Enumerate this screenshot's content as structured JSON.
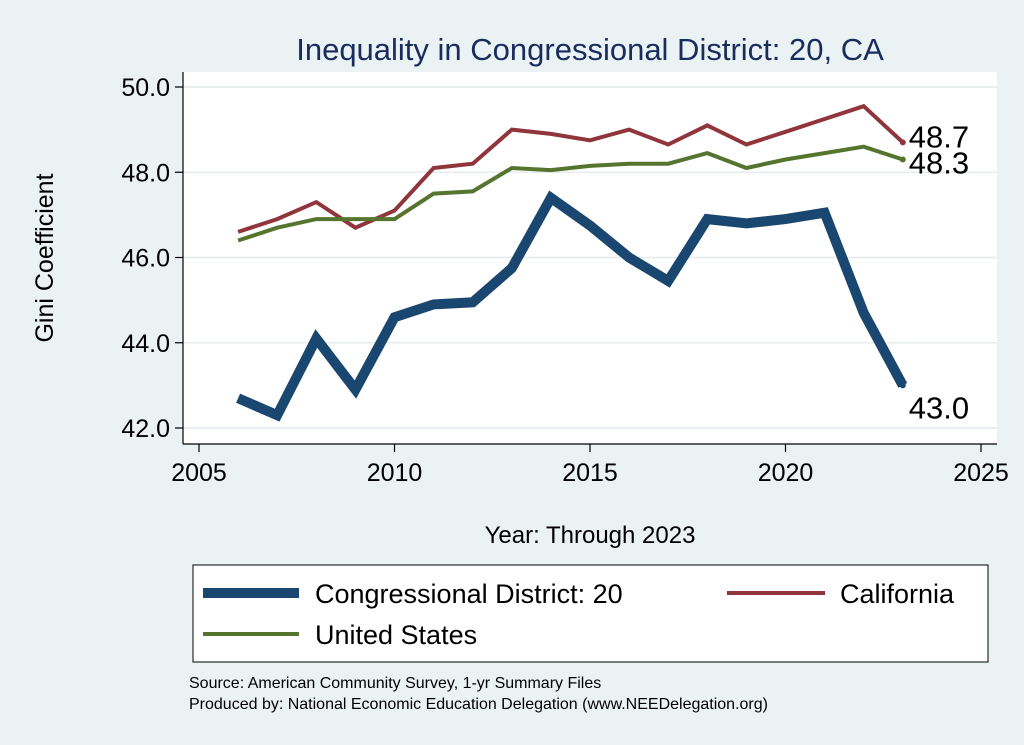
{
  "chart_data": {
    "type": "line",
    "title": "Inequality in Congressional District:  20, CA",
    "xlabel": "Year: Through 2023",
    "ylabel": "Gini Coefficient",
    "xlim": [
      2005,
      2025
    ],
    "ylim": [
      42.0,
      50.0
    ],
    "x_ticks": [
      2005,
      2010,
      2015,
      2020,
      2025
    ],
    "y_ticks": [
      42.0,
      44.0,
      46.0,
      48.0,
      50.0
    ],
    "grid": "horizontal",
    "legend_position": "bottom",
    "x": [
      2006,
      2007,
      2008,
      2009,
      2010,
      2011,
      2012,
      2013,
      2014,
      2015,
      2016,
      2017,
      2018,
      2019,
      2020,
      2021,
      2022,
      2023
    ],
    "series": [
      {
        "name": "Congressional District:  20",
        "color": "#1a476f",
        "values": [
          42.7,
          42.3,
          44.1,
          42.9,
          44.6,
          44.9,
          44.95,
          45.75,
          47.4,
          46.75,
          46.0,
          45.45,
          46.9,
          46.8,
          46.9,
          47.05,
          44.7,
          43.0
        ],
        "end_label": "43.0"
      },
      {
        "name": "California",
        "color": "#90353b",
        "values": [
          46.6,
          46.9,
          47.3,
          46.7,
          47.1,
          48.1,
          48.2,
          49.0,
          48.9,
          48.75,
          49.0,
          48.65,
          49.1,
          48.65,
          48.95,
          49.25,
          49.55,
          48.7
        ],
        "end_label": "48.7"
      },
      {
        "name": "United States",
        "color": "#55752f",
        "values": [
          46.4,
          46.7,
          46.9,
          46.9,
          46.9,
          47.5,
          47.55,
          48.1,
          48.05,
          48.15,
          48.2,
          48.2,
          48.45,
          48.1,
          48.3,
          48.45,
          48.6,
          48.3
        ],
        "end_label": "48.3"
      }
    ]
  },
  "footer": {
    "source": "Source: American Community Survey, 1-yr Summary Files",
    "produced_by": "Produced by: National Economic Education Delegation (www.NEEDelegation.org)"
  }
}
